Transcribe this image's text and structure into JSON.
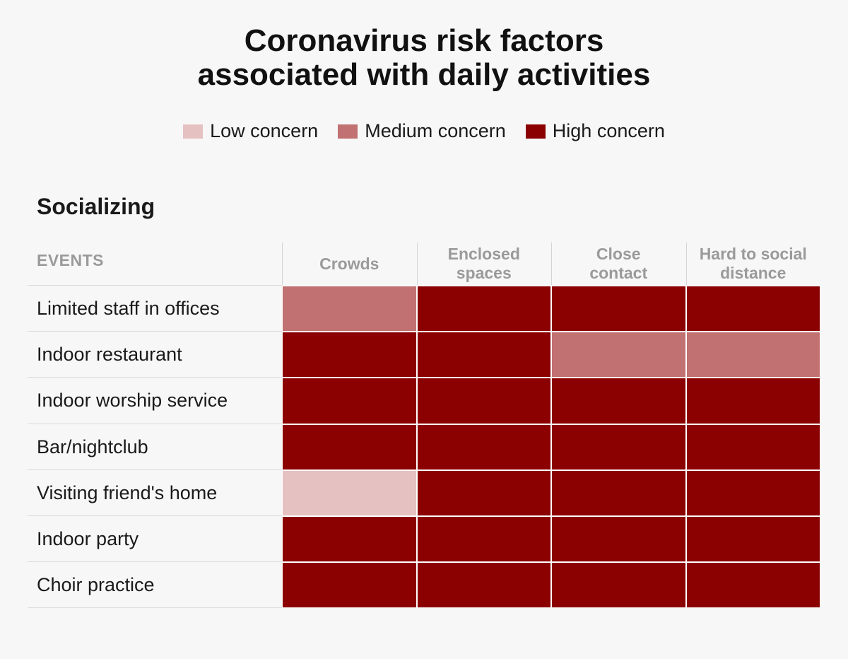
{
  "chart_data": {
    "type": "heatmap",
    "title_lines": [
      "Coronavirus risk factors",
      "associated with daily activities"
    ],
    "legend": [
      {
        "label": "Low concern",
        "level": "low",
        "color": "#e5c1c2"
      },
      {
        "label": "Medium concern",
        "level": "medium",
        "color": "#c17171"
      },
      {
        "label": "High concern",
        "level": "high",
        "color": "#8b0000"
      }
    ],
    "section": "Socializing",
    "row_header": "EVENTS",
    "columns": [
      [
        "Crowds"
      ],
      [
        "Enclosed",
        "spaces"
      ],
      [
        "Close",
        "contact"
      ],
      [
        "Hard to social",
        "distance"
      ]
    ],
    "rows": [
      {
        "label": "Limited staff in offices",
        "values": [
          "medium",
          "high",
          "high",
          "high"
        ]
      },
      {
        "label": "Indoor restaurant",
        "values": [
          "high",
          "high",
          "medium",
          "medium"
        ]
      },
      {
        "label": "Indoor worship service",
        "values": [
          "high",
          "high",
          "high",
          "high"
        ]
      },
      {
        "label": "Bar/nightclub",
        "values": [
          "high",
          "high",
          "high",
          "high"
        ]
      },
      {
        "label": "Visiting friend's home",
        "values": [
          "low",
          "high",
          "high",
          "high"
        ]
      },
      {
        "label": "Indoor party",
        "values": [
          "high",
          "high",
          "high",
          "high"
        ]
      },
      {
        "label": "Choir practice",
        "values": [
          "high",
          "high",
          "high",
          "high"
        ]
      }
    ]
  }
}
